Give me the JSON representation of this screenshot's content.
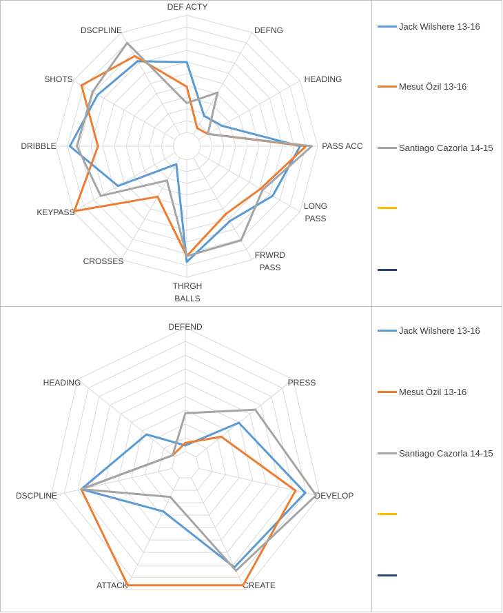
{
  "chart_data": [
    {
      "type": "radar",
      "axes": [
        "DEF ACTY",
        "DEFNG",
        "HEADING",
        "PASS ACC",
        "LONG PASS",
        "FRWRD PASS",
        "THRGH BALLS",
        "CROSSES",
        "KEYPASS",
        "DRIBBLE",
        "SHOTS",
        "DSCPLINE"
      ],
      "rmax": 10,
      "grid_levels": 10,
      "series": [
        {
          "name": "Jack Wilshere 13-16",
          "color": "#5b9bd5",
          "values": [
            6,
            1.8,
            2.3,
            8.5,
            7.3,
            6.2,
            8.7,
            0.6,
            5.6,
            8.8,
            7.6,
            7.2
          ]
        },
        {
          "name": "Mesut Özil 13-16",
          "color": "#ed7d31",
          "values": [
            3.9,
            0.6,
            0.9,
            9,
            6.1,
            5.5,
            8.2,
            3.8,
            9.9,
            6.4,
            9.2,
            7.7
          ]
        },
        {
          "name": "Santiago Cazorla 14-15",
          "color": "#a5a5a5",
          "values": [
            2.5,
            4.1,
            0.9,
            9.5,
            6.3,
            8.1,
            8.2,
            2.2,
            7.3,
            8.2,
            8.1,
            9
          ]
        },
        {
          "name": "",
          "color": "#ffc000",
          "values": []
        },
        {
          "name": "",
          "color": "#264478",
          "values": []
        }
      ]
    },
    {
      "type": "radar",
      "axes": [
        "DEFEND",
        "PRESS",
        "DEVELOP",
        "CREATE",
        "ATTACK",
        "DSCPLINE",
        "HEADING"
      ],
      "rmax": 10,
      "grid_levels": 9,
      "series": [
        {
          "name": "Jack Wilshere 13-16",
          "color": "#5b9bd5",
          "values": [
            0.5,
            4.4,
            8.8,
            8.0,
            3.0,
            7.5,
            2.9
          ]
        },
        {
          "name": "Mesut Özil 13-16",
          "color": "#ed7d31",
          "values": [
            0.7,
            2.6,
            8.0,
            9.6,
            9.6,
            7.5,
            0.2
          ]
        },
        {
          "name": "Santiago Cazorla 14-15",
          "color": "#a5a5a5",
          "values": [
            3.1,
            6.1,
            9.7,
            8.3,
            1.7,
            7.5,
            0.2
          ]
        },
        {
          "name": "",
          "color": "#ffc000",
          "values": []
        },
        {
          "name": "",
          "color": "#264478",
          "values": []
        }
      ]
    }
  ]
}
